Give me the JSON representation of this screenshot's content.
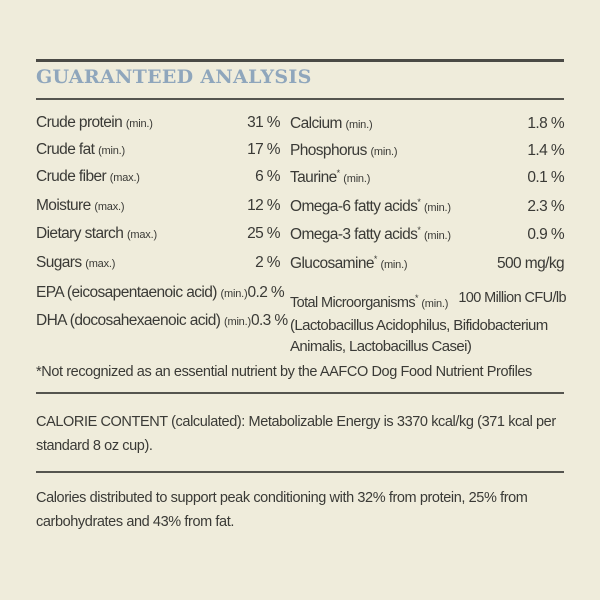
{
  "title": "GUARANTEED ANALYSIS",
  "left_rows": [
    {
      "name": "Crude protein",
      "qual": "(min.)",
      "value": "31 %"
    },
    {
      "name": "Crude fat",
      "qual": "(min.)",
      "value": "17 %"
    },
    {
      "name": "Crude fiber",
      "qual": "(max.)",
      "value": "6 %"
    },
    {
      "name": "Moisture",
      "qual": "(max.)",
      "value": "12 %"
    },
    {
      "name": "Dietary starch",
      "qual": "(max.)",
      "value": "25 %"
    },
    {
      "name": "Sugars",
      "qual": "(max.)",
      "value": "2 %"
    },
    {
      "name": "EPA (eicosapentaenoic acid)",
      "qual": "(min.)",
      "value": "0.2 %"
    },
    {
      "name": "DHA (docosahexaenoic acid)",
      "qual": "(min.)",
      "value": "0.3 %"
    }
  ],
  "right_rows": [
    {
      "name": "Calcium",
      "star": "",
      "qual": "(min.)",
      "value": "1.8 %"
    },
    {
      "name": "Phosphorus",
      "star": "",
      "qual": "(min.)",
      "value": "1.4 %"
    },
    {
      "name": "Taurine",
      "star": "*",
      "qual": "(min.)",
      "value": "0.1 %"
    },
    {
      "name": "Omega-6 fatty acids",
      "star": "*",
      "qual": "(min.)",
      "value": "2.3 %"
    },
    {
      "name": "Omega-3 fatty acids",
      "star": "*",
      "qual": "(min.)",
      "value": "0.9 %"
    },
    {
      "name": "Glucosamine",
      "star": "*",
      "qual": "(min.)",
      "value": "500 mg/kg"
    }
  ],
  "microorganisms": {
    "name": "Total Microorganisms",
    "star": "*",
    "qual": "(min.)",
    "value": "100 Million CFU/lb",
    "detail": "(Lactobacillus Acidophilus, Bifidobacterium Animalis, Lactobacillus Casei)"
  },
  "footnote": "*Not recognized as an essential nutrient by the AAFCO Dog Food Nutrient Profiles",
  "calorie_content": "CALORIE CONTENT (calculated): Metabolizable Energy is 3370 kcal/kg (371 kcal per standard 8 oz cup).",
  "calorie_distribution": "Calories distributed to support peak conditioning with 32% from protein, 25% from carbohydrates and 43% from fat."
}
